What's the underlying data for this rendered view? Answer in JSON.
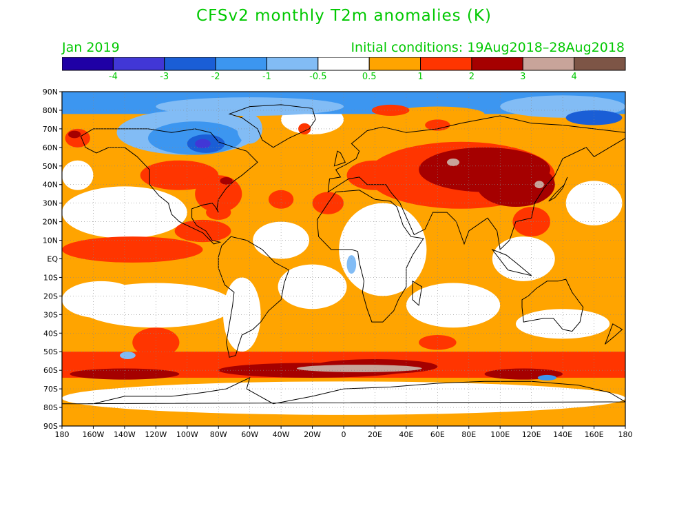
{
  "title": "CFSv2 monthly T2m anomalies (K)",
  "month": "Jan 2019",
  "initial_conditions": "Initial conditions: 19Aug2018–28Aug2018",
  "colors": {
    "text": "#00c800",
    "palette": [
      "#1f00a5",
      "#4137d6",
      "#1a5ed6",
      "#3c96f0",
      "#82bcf5",
      "#ffffff",
      "#ffa400",
      "#ff3500",
      "#a50000",
      "#c8a49a",
      "#7d5546"
    ]
  },
  "colorbar_labels": [
    "-4",
    "-3",
    "-2",
    "-1",
    "-0.5",
    "0.5",
    "1",
    "2",
    "3",
    "4"
  ],
  "lat_labels": [
    "90N",
    "80N",
    "70N",
    "60N",
    "50N",
    "40N",
    "30N",
    "20N",
    "10N",
    "EQ",
    "10S",
    "20S",
    "30S",
    "40S",
    "50S",
    "60S",
    "70S",
    "80S",
    "90S"
  ],
  "lon_labels": [
    "180",
    "160W",
    "140W",
    "120W",
    "100W",
    "80W",
    "60W",
    "40W",
    "20W",
    "0",
    "20E",
    "40E",
    "60E",
    "80E",
    "100E",
    "120E",
    "140E",
    "160E",
    "180"
  ],
  "map_data": {
    "projection": "equirectangular",
    "lon_range": [
      -180,
      180
    ],
    "lat_range": [
      -90,
      90
    ],
    "variable": "T2m anomaly",
    "units": "K",
    "levels": [
      -4,
      -3,
      -2,
      -1,
      -0.5,
      0.5,
      1,
      2,
      3,
      4
    ],
    "regions": [
      {
        "name": "Arctic Ocean cold",
        "lon": [
          -180,
          180
        ],
        "lat": [
          75,
          90
        ],
        "value": -1
      },
      {
        "name": "Canada cold",
        "lon": [
          -140,
          -60
        ],
        "lat": [
          55,
          75
        ],
        "value": -1.5
      },
      {
        "name": "Hudson Bay cold core",
        "lon": [
          -100,
          -80
        ],
        "lat": [
          58,
          66
        ],
        "value": -2.5
      },
      {
        "name": "Eurasia warm",
        "lon": [
          10,
          150
        ],
        "lat": [
          30,
          70
        ],
        "value": 1.5
      },
      {
        "name": "Siberia / Mongolia very warm",
        "lon": [
          40,
          130
        ],
        "lat": [
          35,
          60
        ],
        "value": 2.5
      },
      {
        "name": "Eastern Pacific equatorial warm",
        "lon": [
          -180,
          -80
        ],
        "lat": [
          -10,
          20
        ],
        "value": 1.2
      },
      {
        "name": "Southern Ocean warm belt",
        "lon": [
          -180,
          180
        ],
        "lat": [
          -65,
          -45
        ],
        "value": 1.5
      },
      {
        "name": "Southern Ocean hot core",
        "lon": [
          -60,
          120
        ],
        "lat": [
          -65,
          -50
        ],
        "value": 3
      },
      {
        "name": "Tropical Africa neutral",
        "lon": [
          -10,
          40
        ],
        "lat": [
          -20,
          20
        ],
        "value": 0
      },
      {
        "name": "Southern Pacific neutral",
        "lon": [
          -180,
          -80
        ],
        "lat": [
          -40,
          -15
        ],
        "value": 0
      }
    ]
  }
}
